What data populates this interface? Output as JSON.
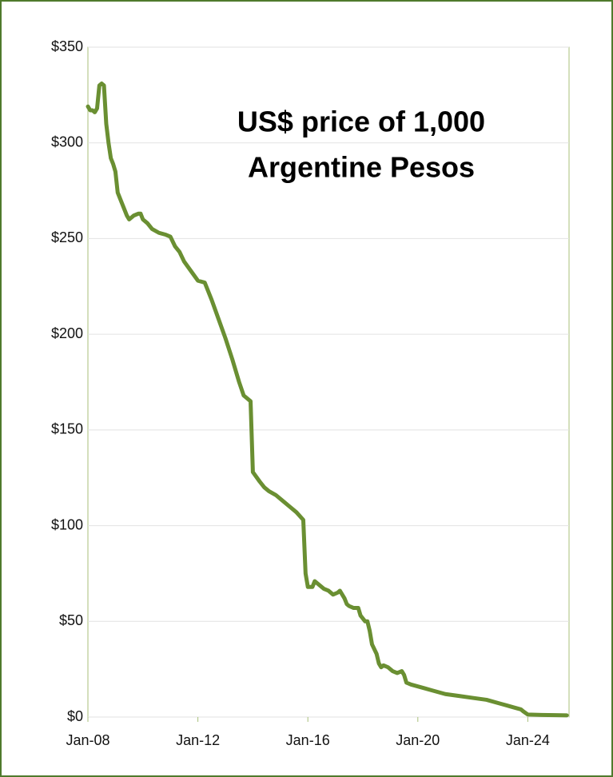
{
  "chart_data": {
    "type": "line",
    "title": [
      "US$ price of 1,000",
      "Argentine Pesos"
    ],
    "x": [
      "Jan-08",
      "Feb-08",
      "Mar-08",
      "Apr-08",
      "May-08",
      "Jun-08",
      "Jul-08",
      "Aug-08",
      "Sep-08",
      "Oct-08",
      "Nov-08",
      "Dec-08",
      "Jan-09",
      "Feb-09",
      "Apr-09",
      "Jun-09",
      "Jul-09",
      "Sep-09",
      "Nov-09",
      "Dec-09",
      "Jan-10",
      "Mar-10",
      "May-10",
      "Aug-10",
      "Nov-10",
      "Jan-11",
      "Mar-11",
      "May-11",
      "Jul-11",
      "Oct-11",
      "Jan-12",
      "Apr-12",
      "Jul-12",
      "Oct-12",
      "Jan-13",
      "Apr-13",
      "Jul-13",
      "Sep-13",
      "Dec-13",
      "Jan-14",
      "Apr-14",
      "Jun-14",
      "Aug-14",
      "Nov-14",
      "Feb-15",
      "May-15",
      "Aug-15",
      "Nov-15",
      "Dec-15",
      "Jan-16",
      "Mar-16",
      "Apr-16",
      "Jun-16",
      "Aug-16",
      "Oct-16",
      "Dec-16",
      "Feb-17",
      "Mar-17",
      "May-17",
      "Jun-17",
      "Jul-17",
      "Sep-17",
      "Nov-17",
      "Dec-17",
      "Feb-18",
      "Mar-18",
      "Apr-18",
      "May-18",
      "Jul-18",
      "Aug-18",
      "Sep-18",
      "Oct-18",
      "Dec-18",
      "Feb-19",
      "Apr-19",
      "Jun-19",
      "Jul-19",
      "Aug-19",
      "Oct-19",
      "Jan-20",
      "Apr-20",
      "Jul-20",
      "Jan-21",
      "Jul-21",
      "Jan-22",
      "Jul-22",
      "Jan-23",
      "Jul-23",
      "Oct-23",
      "Nov-23",
      "Jan-24",
      "Jul-24",
      "Jan-25",
      "Jun-25"
    ],
    "series": [
      {
        "color": "#6a8f32",
        "values": [
          319,
          317,
          317,
          316,
          318,
          330,
          331,
          330,
          310,
          300,
          292,
          289,
          285,
          274,
          268,
          262,
          260,
          262,
          263,
          263,
          260,
          258,
          255,
          253,
          252,
          251,
          246,
          243,
          238,
          233,
          228,
          227,
          218,
          208,
          198,
          187,
          175,
          168,
          165,
          128,
          123,
          120,
          118,
          116,
          113,
          110,
          107,
          103,
          75,
          68,
          68,
          71,
          69,
          67,
          66,
          64,
          65,
          66,
          62,
          59,
          58,
          57,
          57,
          53,
          50,
          50,
          45,
          38,
          33,
          28,
          26,
          27,
          26,
          24,
          23,
          24,
          22,
          18,
          17,
          16,
          15,
          14,
          12,
          11,
          10,
          9,
          7,
          5,
          4,
          3,
          1.3,
          1.1,
          1.0,
          0.9
        ]
      }
    ],
    "xlim": [
      "Jan-08",
      "Jul-25"
    ],
    "xticks": [
      "Jan-08",
      "Jan-12",
      "Jan-16",
      "Jan-20",
      "Jan-24"
    ],
    "ylim": [
      0,
      350
    ],
    "yticks": [
      {
        "value": 0,
        "label": "$0"
      },
      {
        "value": 50,
        "label": "$50"
      },
      {
        "value": 100,
        "label": "$100"
      },
      {
        "value": 150,
        "label": "$150"
      },
      {
        "value": 200,
        "label": "$200"
      },
      {
        "value": 250,
        "label": "$250"
      },
      {
        "value": 300,
        "label": "$300"
      },
      {
        "value": 350,
        "label": "$350"
      }
    ],
    "grid": true
  }
}
